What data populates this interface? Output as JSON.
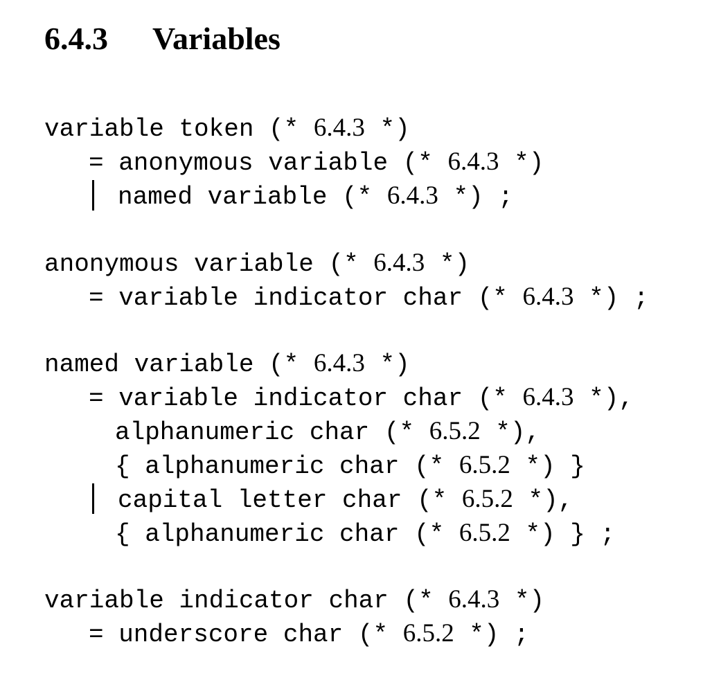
{
  "heading": {
    "number": "6.4.3",
    "title": "Variables"
  },
  "rules": [
    {
      "head": {
        "text": "variable token (* ",
        "ref": "6.4.3",
        "tail": " *)"
      },
      "lines": [
        {
          "text": "= anonymous variable (* ",
          "ref": "6.4.3",
          "tail": " *)"
        },
        {
          "text": "named variable (* ",
          "ref": "6.4.3",
          "tail": " *) ;"
        }
      ]
    },
    {
      "head": {
        "text": "anonymous variable (* ",
        "ref": "6.4.3",
        "tail": " *)"
      },
      "lines": [
        {
          "text": "= variable indicator char (* ",
          "ref": "6.4.3",
          "tail": " *) ;"
        }
      ]
    },
    {
      "head": {
        "text": "named variable (* ",
        "ref": "6.4.3",
        "tail": " *)"
      },
      "lines": [
        {
          "text": "= variable indicator char (* ",
          "ref": "6.4.3",
          "tail": " *),"
        },
        {
          "text": "alphanumeric char (* ",
          "ref": "6.5.2",
          "tail": " *),"
        },
        {
          "text": "{ alphanumeric char (* ",
          "ref": "6.5.2",
          "tail": " *) }"
        },
        {
          "text": "capital letter char (* ",
          "ref": "6.5.2",
          "tail": " *),"
        },
        {
          "text": "{ alphanumeric char (* ",
          "ref": "6.5.2",
          "tail": " *) } ;"
        }
      ]
    },
    {
      "head": {
        "text": "variable indicator char (* ",
        "ref": "6.4.3",
        "tail": " *)"
      },
      "lines": [
        {
          "text": "= underscore char (* ",
          "ref": "6.5.2",
          "tail": " *) ;"
        }
      ]
    }
  ]
}
